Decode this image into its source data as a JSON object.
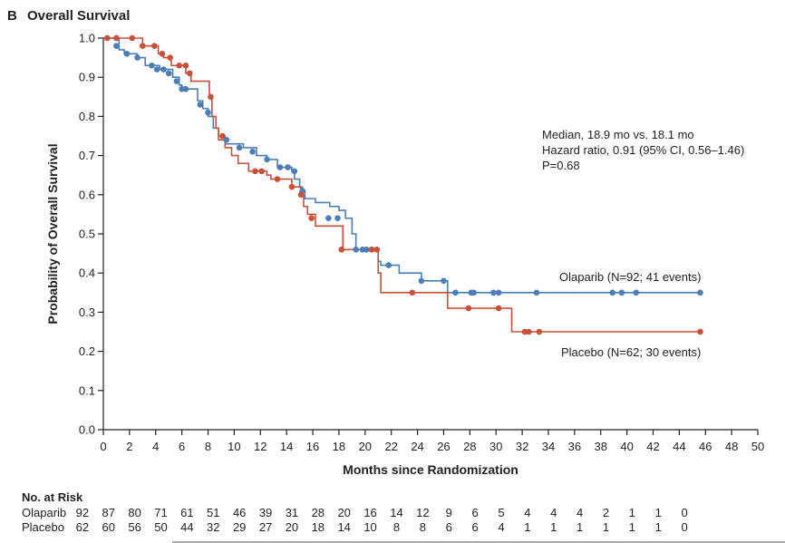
{
  "chart_data": {
    "type": "line",
    "panel_label": "B",
    "title": "Overall Survival",
    "xlabel": "Months since Randomization",
    "ylabel": "Probability of Overall Survival",
    "xlim": [
      0,
      50
    ],
    "ylim": [
      0.0,
      1.0
    ],
    "xticks": [
      0,
      2,
      4,
      6,
      8,
      10,
      12,
      14,
      16,
      18,
      20,
      22,
      24,
      26,
      28,
      30,
      32,
      34,
      36,
      38,
      40,
      42,
      44,
      46,
      48,
      50
    ],
    "yticks": [
      "0.0",
      "0.1",
      "0.2",
      "0.3",
      "0.4",
      "0.5",
      "0.6",
      "0.7",
      "0.8",
      "0.9",
      "1.0"
    ],
    "annotations": {
      "line1": "Median, 18.9 mo vs. 18.1 mo",
      "line2": "Hazard ratio, 0.91 (95% CI, 0.56–1.46)",
      "line3": "P=0.68"
    },
    "series": [
      {
        "name": "Olaparib",
        "label": "Olaparib (N=92; 41 events)",
        "color": "#4a7ebb",
        "steps": [
          [
            0,
            1.0
          ],
          [
            1.2,
            0.97
          ],
          [
            1.6,
            0.96
          ],
          [
            2.6,
            0.95
          ],
          [
            3.2,
            0.93
          ],
          [
            4.3,
            0.92
          ],
          [
            5.3,
            0.9
          ],
          [
            5.8,
            0.88
          ],
          [
            6.0,
            0.87
          ],
          [
            7.2,
            0.84
          ],
          [
            7.6,
            0.82
          ],
          [
            8.0,
            0.8
          ],
          [
            8.4,
            0.77
          ],
          [
            8.8,
            0.75
          ],
          [
            9.3,
            0.73
          ],
          [
            10.7,
            0.72
          ],
          [
            11.7,
            0.7
          ],
          [
            12.5,
            0.69
          ],
          [
            13.3,
            0.67
          ],
          [
            14.4,
            0.66
          ],
          [
            14.6,
            0.64
          ],
          [
            15.0,
            0.62
          ],
          [
            15.2,
            0.61
          ],
          [
            15.4,
            0.59
          ],
          [
            16.2,
            0.58
          ],
          [
            17.3,
            0.57
          ],
          [
            18.0,
            0.56
          ],
          [
            18.5,
            0.54
          ],
          [
            19.0,
            0.5
          ],
          [
            19.3,
            0.46
          ],
          [
            21.0,
            0.43
          ],
          [
            21.2,
            0.42
          ],
          [
            22.6,
            0.4
          ],
          [
            24.3,
            0.38
          ],
          [
            26.3,
            0.35
          ],
          [
            45.6,
            0.35
          ]
        ],
        "censored": [
          [
            1.0,
            0.98
          ],
          [
            1.8,
            0.96
          ],
          [
            2.6,
            0.95
          ],
          [
            3.7,
            0.93
          ],
          [
            4.1,
            0.92
          ],
          [
            4.6,
            0.92
          ],
          [
            5.0,
            0.91
          ],
          [
            5.6,
            0.89
          ],
          [
            6.0,
            0.87
          ],
          [
            6.3,
            0.87
          ],
          [
            7.4,
            0.83
          ],
          [
            8.0,
            0.81
          ],
          [
            9.4,
            0.74
          ],
          [
            10.4,
            0.72
          ],
          [
            11.4,
            0.71
          ],
          [
            12.5,
            0.69
          ],
          [
            13.5,
            0.67
          ],
          [
            14.1,
            0.67
          ],
          [
            14.6,
            0.66
          ],
          [
            15.2,
            0.61
          ],
          [
            17.2,
            0.54
          ],
          [
            17.9,
            0.54
          ],
          [
            19.3,
            0.46
          ],
          [
            19.8,
            0.46
          ],
          [
            20.1,
            0.46
          ],
          [
            20.5,
            0.46
          ],
          [
            21.8,
            0.42
          ],
          [
            24.3,
            0.38
          ],
          [
            26.0,
            0.38
          ],
          [
            26.9,
            0.35
          ],
          [
            28.1,
            0.35
          ],
          [
            28.3,
            0.35
          ],
          [
            29.8,
            0.35
          ],
          [
            30.2,
            0.35
          ],
          [
            33.1,
            0.35
          ],
          [
            38.9,
            0.35
          ],
          [
            39.6,
            0.35
          ],
          [
            40.7,
            0.35
          ],
          [
            45.6,
            0.35
          ]
        ]
      },
      {
        "name": "Placebo",
        "label": "Placebo (N=62; 30 events)",
        "color": "#c9513a",
        "steps": [
          [
            0,
            1.0
          ],
          [
            3.0,
            0.98
          ],
          [
            4.2,
            0.96
          ],
          [
            4.6,
            0.95
          ],
          [
            5.2,
            0.93
          ],
          [
            6.3,
            0.91
          ],
          [
            6.7,
            0.89
          ],
          [
            8.1,
            0.85
          ],
          [
            8.3,
            0.8
          ],
          [
            8.6,
            0.77
          ],
          [
            8.8,
            0.74
          ],
          [
            9.3,
            0.72
          ],
          [
            9.8,
            0.7
          ],
          [
            10.3,
            0.68
          ],
          [
            11.1,
            0.66
          ],
          [
            12.5,
            0.65
          ],
          [
            12.8,
            0.64
          ],
          [
            14.4,
            0.62
          ],
          [
            15.1,
            0.6
          ],
          [
            15.3,
            0.57
          ],
          [
            15.6,
            0.55
          ],
          [
            16.2,
            0.52
          ],
          [
            18.3,
            0.46
          ],
          [
            20.7,
            0.46
          ],
          [
            21.0,
            0.4
          ],
          [
            21.2,
            0.35
          ],
          [
            26.3,
            0.31
          ],
          [
            31.2,
            0.25
          ],
          [
            45.6,
            0.25
          ]
        ],
        "censored": [
          [
            0.3,
            1.0
          ],
          [
            1.0,
            1.0
          ],
          [
            2.2,
            1.0
          ],
          [
            3.0,
            0.98
          ],
          [
            3.9,
            0.98
          ],
          [
            4.5,
            0.96
          ],
          [
            5.1,
            0.95
          ],
          [
            5.8,
            0.93
          ],
          [
            6.3,
            0.93
          ],
          [
            6.6,
            0.91
          ],
          [
            8.2,
            0.85
          ],
          [
            9.1,
            0.75
          ],
          [
            11.6,
            0.66
          ],
          [
            12.1,
            0.66
          ],
          [
            13.3,
            0.64
          ],
          [
            14.4,
            0.62
          ],
          [
            15.1,
            0.6
          ],
          [
            15.9,
            0.54
          ],
          [
            18.2,
            0.46
          ],
          [
            20.5,
            0.46
          ],
          [
            20.9,
            0.46
          ],
          [
            23.6,
            0.35
          ],
          [
            27.9,
            0.31
          ],
          [
            30.2,
            0.31
          ],
          [
            32.2,
            0.25
          ],
          [
            32.5,
            0.25
          ],
          [
            33.3,
            0.25
          ],
          [
            45.6,
            0.25
          ]
        ]
      }
    ],
    "risk_table": {
      "heading": "No. at Risk",
      "rows": [
        {
          "label": "Olaparib",
          "values": [
            "92",
            "87",
            "80",
            "71",
            "61",
            "51",
            "46",
            "39",
            "31",
            "28",
            "20",
            "16",
            "14",
            "12",
            "9",
            "6",
            "5",
            "4",
            "4",
            "4",
            "2",
            "1",
            "1",
            "0"
          ]
        },
        {
          "label": "Placebo",
          "values": [
            "62",
            "60",
            "56",
            "50",
            "44",
            "32",
            "29",
            "27",
            "20",
            "18",
            "14",
            "10",
            "8",
            "8",
            "6",
            "6",
            "4",
            "1",
            "1",
            "1",
            "1",
            "1",
            "1",
            "0"
          ]
        }
      ]
    }
  }
}
